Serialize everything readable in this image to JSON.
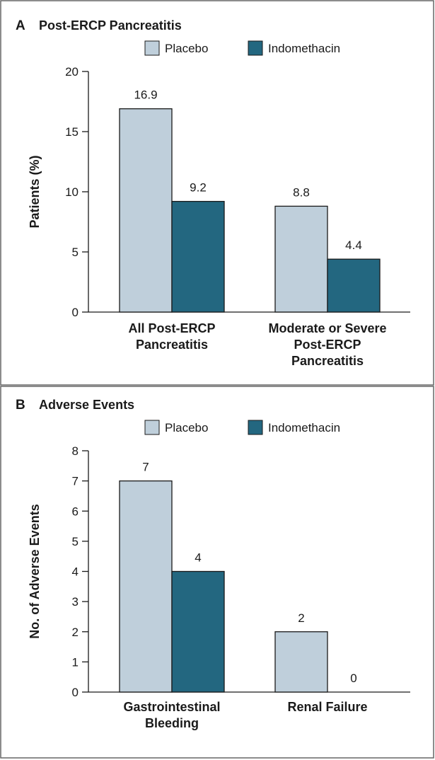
{
  "colors": {
    "placebo": "#bfcfdb",
    "indomethacin": "#236780",
    "stroke": "#1a1a1a",
    "frame": "#666666",
    "text": "#1a1a1a"
  },
  "chart_data": [
    {
      "type": "bar",
      "panel_letter": "A",
      "title": "Post-ERCP Pancreatitis",
      "ylabel": "Patients (%)",
      "xlabel": "",
      "ylim": [
        0,
        20
      ],
      "yticks": [
        0,
        5,
        10,
        15,
        20
      ],
      "grid": false,
      "legend": "top-center",
      "categories": [
        [
          "All Post-ERCP",
          "Pancreatitis"
        ],
        [
          "Moderate or Severe",
          "Post-ERCP",
          "Pancreatitis"
        ]
      ],
      "series": [
        {
          "name": "Placebo",
          "values": [
            16.9,
            8.8
          ],
          "labels": [
            "16.9",
            "8.8"
          ]
        },
        {
          "name": "Indomethacin",
          "values": [
            9.2,
            4.4
          ],
          "labels": [
            "9.2",
            "4.4"
          ]
        }
      ]
    },
    {
      "type": "bar",
      "panel_letter": "B",
      "title": "Adverse Events",
      "ylabel": "No. of Adverse Events",
      "xlabel": "",
      "ylim": [
        0,
        8
      ],
      "yticks": [
        0,
        1,
        2,
        3,
        4,
        5,
        6,
        7,
        8
      ],
      "grid": false,
      "legend": "top-center",
      "categories": [
        [
          "Gastrointestinal",
          "Bleeding"
        ],
        [
          "Renal Failure"
        ]
      ],
      "series": [
        {
          "name": "Placebo",
          "values": [
            7,
            2
          ],
          "labels": [
            "7",
            "2"
          ]
        },
        {
          "name": "Indomethacin",
          "values": [
            4,
            0
          ],
          "labels": [
            "4",
            "0"
          ]
        }
      ]
    }
  ]
}
